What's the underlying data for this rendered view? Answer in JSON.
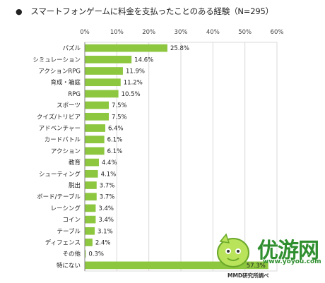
{
  "header": {
    "bullet": "●",
    "title": "スマートフォンゲームに料金を支払ったことのある経験（N=295）"
  },
  "footer": {
    "source": "MMD研究所調べ"
  },
  "watermark": {
    "brand": "优游网",
    "url": "www.yoyou.com"
  },
  "colors": {
    "bar": "#8dc63f",
    "grid": "#d9d9d9",
    "axis": "#7f7f7f"
  },
  "chart_data": {
    "type": "bar",
    "orientation": "horizontal",
    "title": "スマートフォンゲームに料金を支払ったことのある経験（N=295）",
    "x_ticks": [
      "0%",
      "10%",
      "20%",
      "30%",
      "40%",
      "50%",
      "60%"
    ],
    "xlim": [
      0,
      60
    ],
    "grid": true,
    "categories": [
      "パズル",
      "シミュレーション",
      "アクションRPG",
      "育成・箱庭",
      "RPG",
      "スポーツ",
      "クイズ/トリビア",
      "アドベンチャー",
      "カードバトル",
      "アクション",
      "教育",
      "シューティング",
      "脱出",
      "ボード/テーブル",
      "レーシング",
      "コイン",
      "テーブル",
      "ディフェンス",
      "その他",
      "特にない"
    ],
    "values": [
      25.8,
      14.6,
      11.9,
      11.2,
      10.5,
      7.5,
      7.5,
      6.4,
      6.1,
      6.1,
      4.4,
      4.1,
      3.7,
      3.7,
      3.4,
      3.4,
      3.1,
      2.4,
      0.3,
      57.3
    ],
    "value_labels": [
      "25.8%",
      "14.6%",
      "11.9%",
      "11.2%",
      "10.5%",
      "7.5%",
      "7.5%",
      "6.4%",
      "6.1%",
      "6.1%",
      "4.4%",
      "4.1%",
      "3.7%",
      "3.7%",
      "3.4%",
      "3.4%",
      "3.1%",
      "2.4%",
      "0.3%",
      "57.3%"
    ]
  }
}
